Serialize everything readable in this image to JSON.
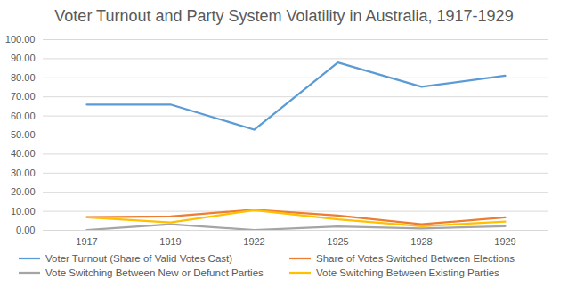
{
  "chart_data": {
    "type": "line",
    "title": "Voter Turnout and Party System Volatility in Australia, 1917-1929",
    "categories": [
      "1917",
      "1919",
      "1922",
      "1925",
      "1928",
      "1929"
    ],
    "series": [
      {
        "name": "Voter Turnout (Share of Valid Votes Cast)",
        "color": "#5b9bd5",
        "values": [
          66.0,
          66.0,
          52.8,
          88.0,
          75.3,
          81.1
        ]
      },
      {
        "name": "Share of Votes Switched Between Elections",
        "color": "#ed7d31",
        "values": [
          7.0,
          7.3,
          10.8,
          7.8,
          3.2,
          6.8
        ]
      },
      {
        "name": "Vote Switching Between New or Defunct Parties",
        "color": "#a5a5a5",
        "values": [
          0.2,
          3.2,
          0.2,
          2.0,
          1.0,
          2.2
        ]
      },
      {
        "name": "Vote Switching Between Existing Parties",
        "color": "#ffc000",
        "values": [
          6.8,
          4.1,
          10.6,
          5.8,
          2.2,
          4.6
        ]
      }
    ],
    "ylim": [
      0,
      100
    ],
    "yticks": [
      {
        "value": 0,
        "label": "0.00"
      },
      {
        "value": 10,
        "label": "10.00"
      },
      {
        "value": 20,
        "label": "20.00"
      },
      {
        "value": 30,
        "label": "30.00"
      },
      {
        "value": 40,
        "label": "40.00"
      },
      {
        "value": 50,
        "label": "50.00"
      },
      {
        "value": 60,
        "label": "60.00"
      },
      {
        "value": 70,
        "label": "70.00"
      },
      {
        "value": 80,
        "label": "80.00"
      },
      {
        "value": 90,
        "label": "90.00"
      },
      {
        "value": 100,
        "label": "100.00"
      }
    ],
    "grid": true,
    "legend": "bottom"
  }
}
